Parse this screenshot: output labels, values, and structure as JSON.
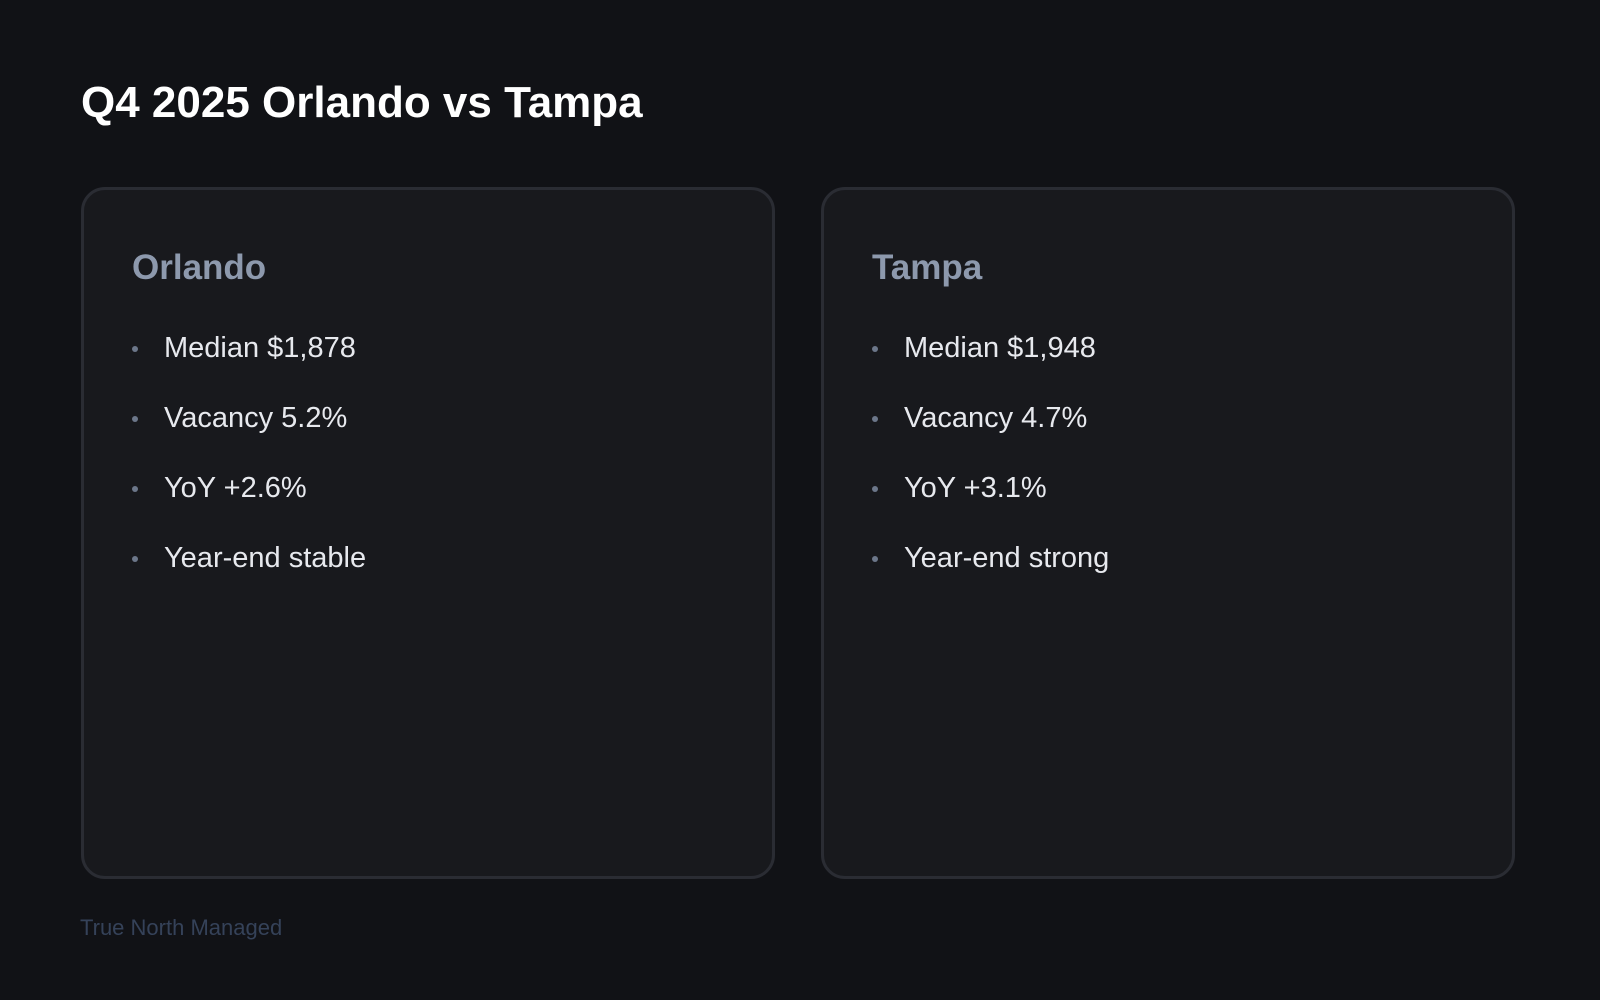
{
  "title": "Q4 2025 Orlando vs Tampa",
  "cards": [
    {
      "heading": "Orlando",
      "items": [
        "Median $1,878",
        "Vacancy 5.2%",
        "YoY +2.6%",
        "Year-end stable"
      ]
    },
    {
      "heading": "Tampa",
      "items": [
        "Median $1,948",
        "Vacancy 4.7%",
        "YoY +3.1%",
        "Year-end strong"
      ]
    }
  ],
  "footer": "True North Managed",
  "colors": {
    "background": "#111216",
    "card": "#18191d",
    "heading": "#8d99ad",
    "footer": "#354259"
  }
}
